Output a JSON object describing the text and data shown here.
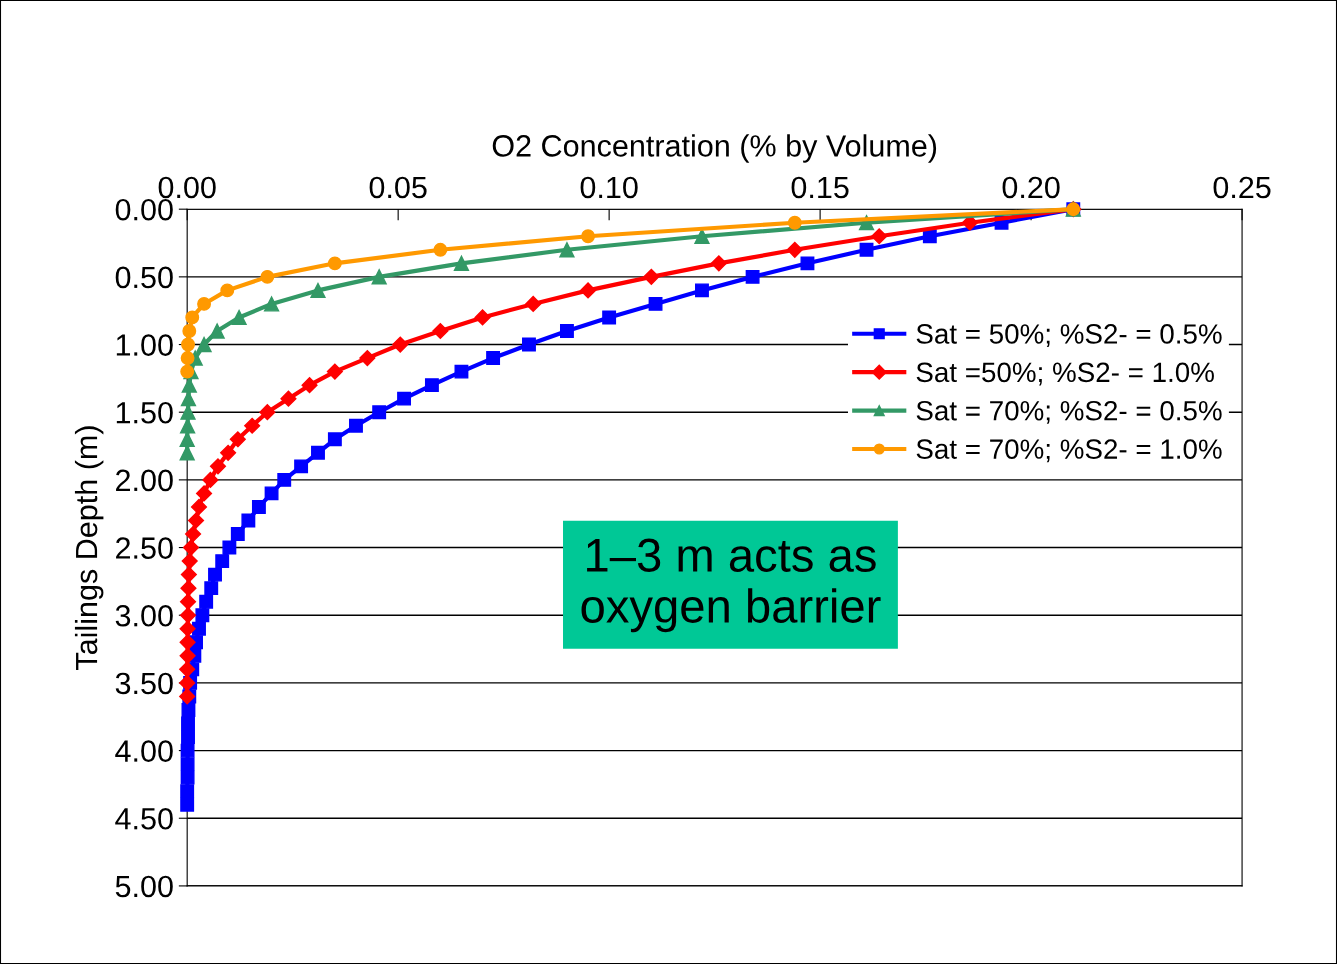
{
  "chart_data": {
    "type": "line",
    "xlabel": "O2 Concentration (% by Volume)",
    "ylabel": "Tailings Depth (m)",
    "xlim": [
      0,
      0.25
    ],
    "xticks": [
      {
        "value": 0,
        "label": "0.00"
      },
      {
        "value": 0.05,
        "label": "0.05"
      },
      {
        "value": 0.1,
        "label": "0.10"
      },
      {
        "value": 0.15,
        "label": "0.15"
      },
      {
        "value": 0.2,
        "label": "0.20"
      },
      {
        "value": 0.25,
        "label": "0.25"
      }
    ],
    "ylim": [
      5,
      0
    ],
    "yticks": [
      {
        "value": 0,
        "label": "0.00"
      },
      {
        "value": 0.5,
        "label": "0.50"
      },
      {
        "value": 1,
        "label": "1.00"
      },
      {
        "value": 1.5,
        "label": "1.50"
      },
      {
        "value": 2,
        "label": "2.00"
      },
      {
        "value": 2.5,
        "label": "2.50"
      },
      {
        "value": 3,
        "label": "3.00"
      },
      {
        "value": 3.5,
        "label": "3.50"
      },
      {
        "value": 4,
        "label": "4.00"
      },
      {
        "value": 4.5,
        "label": "4.50"
      },
      {
        "value": 5,
        "label": "5.00"
      }
    ],
    "grid": "y",
    "legend": "top right",
    "line_style": "solid",
    "series": [
      {
        "name": "Sat = 50%; %S2- = 0.5%",
        "color": "#0000ff",
        "marker": "square",
        "x": [
          0.21,
          0.193,
          0.176,
          0.161,
          0.147,
          0.134,
          0.122,
          0.111,
          0.1,
          0.09,
          0.081,
          0.0725,
          0.065,
          0.058,
          0.0514,
          0.0455,
          0.04,
          0.035,
          0.031,
          0.027,
          0.023,
          0.02,
          0.017,
          0.0145,
          0.012,
          0.01,
          0.0083,
          0.0066,
          0.0057,
          0.0045,
          0.0036,
          0.0028,
          0.0021,
          0.0017,
          0.0012,
          0.0007,
          0.0005,
          0.0003,
          0.0002,
          0.0002,
          0.0001,
          0.0001,
          0.0001,
          0.0,
          0.0
        ],
        "values": [
          0,
          0.1,
          0.2,
          0.3,
          0.4,
          0.5,
          0.6,
          0.7,
          0.8,
          0.9,
          1.0,
          1.1,
          1.2,
          1.3,
          1.4,
          1.5,
          1.6,
          1.7,
          1.8,
          1.9,
          2.0,
          2.1,
          2.2,
          2.3,
          2.4,
          2.5,
          2.6,
          2.7,
          2.8,
          2.9,
          3.0,
          3.1,
          3.2,
          3.3,
          3.4,
          3.5,
          3.6,
          3.7,
          3.8,
          3.9,
          4.0,
          4.1,
          4.2,
          4.3,
          4.4
        ]
      },
      {
        "name": "Sat =50%; %S2- = 1.0%",
        "color": "#ff0000",
        "marker": "diamond",
        "x": [
          0.21,
          0.1855,
          0.164,
          0.144,
          0.126,
          0.11,
          0.095,
          0.082,
          0.07,
          0.06,
          0.0505,
          0.0427,
          0.035,
          0.029,
          0.024,
          0.019,
          0.0154,
          0.012,
          0.0097,
          0.0073,
          0.0055,
          0.004,
          0.0028,
          0.0021,
          0.0014,
          0.0009,
          0.0006,
          0.0004,
          0.0003,
          0.0002,
          0.0002,
          0.0001,
          0.0001,
          0.0001,
          0.0,
          0.0,
          0.0
        ],
        "values": [
          0,
          0.1,
          0.2,
          0.3,
          0.4,
          0.5,
          0.6,
          0.7,
          0.8,
          0.9,
          1.0,
          1.1,
          1.2,
          1.3,
          1.4,
          1.5,
          1.6,
          1.7,
          1.8,
          1.9,
          2.0,
          2.1,
          2.2,
          2.3,
          2.4,
          2.5,
          2.6,
          2.7,
          2.8,
          2.9,
          3.0,
          3.1,
          3.2,
          3.3,
          3.4,
          3.5,
          3.6
        ]
      },
      {
        "name": "Sat = 70%; %S2- = 0.5%",
        "color": "#339966",
        "marker": "triangle",
        "x": [
          0.21,
          0.161,
          0.122,
          0.09,
          0.065,
          0.0455,
          0.031,
          0.02,
          0.0123,
          0.0071,
          0.004,
          0.0019,
          0.0009,
          0.0005,
          0.0003,
          0.0002,
          0.0001,
          0.0,
          0.0
        ],
        "values": [
          0,
          0.1,
          0.2,
          0.3,
          0.4,
          0.5,
          0.6,
          0.7,
          0.8,
          0.9,
          1.0,
          1.1,
          1.2,
          1.3,
          1.4,
          1.5,
          1.6,
          1.7,
          1.8
        ]
      },
      {
        "name": "Sat = 70%; %S2- = 1.0%",
        "color": "#ff9900",
        "marker": "circle",
        "x": [
          0.21,
          0.144,
          0.095,
          0.06,
          0.035,
          0.019,
          0.0095,
          0.004,
          0.0012,
          0.0005,
          0.0002,
          0.0001,
          0.0
        ],
        "values": [
          0,
          0.1,
          0.2,
          0.3,
          0.4,
          0.5,
          0.6,
          0.7,
          0.8,
          0.9,
          1.0,
          1.1,
          1.2
        ]
      }
    ],
    "annotations": [
      "1–3 m acts as\noxygen barrier"
    ]
  }
}
